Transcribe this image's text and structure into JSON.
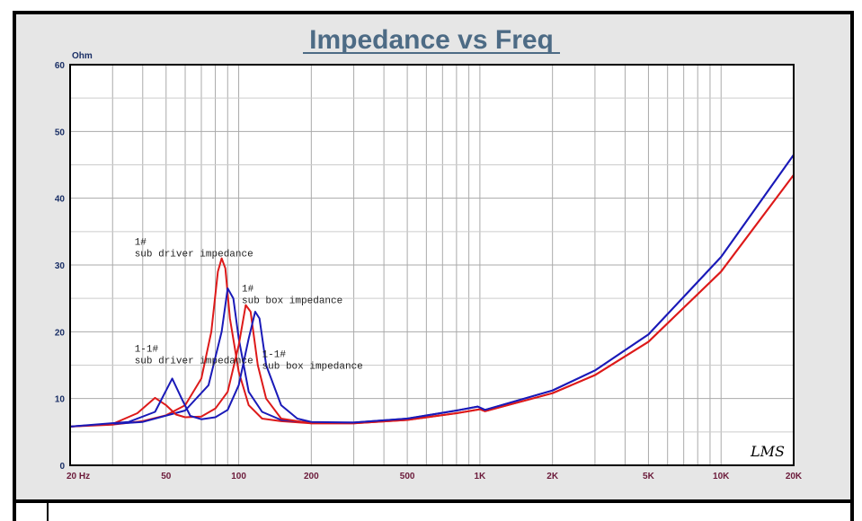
{
  "chart_data": {
    "type": "line",
    "title": "Impedance vs Freq",
    "ylabel": "Ohm",
    "xlabel": "",
    "xscale": "log",
    "xlim": [
      20,
      20000
    ],
    "ylim": [
      0,
      60
    ],
    "grid": true,
    "yticks": [
      0,
      10,
      20,
      30,
      40,
      50,
      60
    ],
    "xticks": [
      {
        "value": 20,
        "label": "20  Hz"
      },
      {
        "value": 50,
        "label": "50"
      },
      {
        "value": 100,
        "label": "100"
      },
      {
        "value": 200,
        "label": "200"
      },
      {
        "value": 500,
        "label": "500"
      },
      {
        "value": 1000,
        "label": "1K"
      },
      {
        "value": 2000,
        "label": "2K"
      },
      {
        "value": 5000,
        "label": "5K"
      },
      {
        "value": 10000,
        "label": "10K"
      },
      {
        "value": 20000,
        "label": "20K"
      }
    ],
    "series": [
      {
        "name": "1# sub driver impedance",
        "color": "#dd1a1a",
        "points": [
          [
            20,
            5.8
          ],
          [
            30,
            6.1
          ],
          [
            40,
            6.6
          ],
          [
            50,
            7.5
          ],
          [
            60,
            9
          ],
          [
            70,
            13
          ],
          [
            77,
            20
          ],
          [
            82,
            29
          ],
          [
            85,
            31
          ],
          [
            88,
            29.5
          ],
          [
            92,
            22
          ],
          [
            100,
            14
          ],
          [
            110,
            9
          ],
          [
            125,
            7
          ],
          [
            150,
            6.6
          ],
          [
            200,
            6.3
          ],
          [
            300,
            6.3
          ],
          [
            500,
            6.8
          ],
          [
            800,
            7.8
          ],
          [
            1000,
            8.4
          ],
          [
            1050,
            8.1
          ],
          [
            2000,
            10.8
          ],
          [
            3000,
            13.5
          ],
          [
            5000,
            18.5
          ],
          [
            10000,
            29
          ],
          [
            20000,
            43.5
          ]
        ]
      },
      {
        "name": "1-1# sub driver impedance",
        "color": "#1a1ab8",
        "points": [
          [
            20,
            5.8
          ],
          [
            40,
            6.5
          ],
          [
            60,
            8.2
          ],
          [
            75,
            12
          ],
          [
            85,
            20
          ],
          [
            90,
            26.5
          ],
          [
            95,
            25
          ],
          [
            100,
            19
          ],
          [
            110,
            11
          ],
          [
            125,
            8
          ],
          [
            150,
            6.8
          ],
          [
            200,
            6.4
          ],
          [
            300,
            6.4
          ],
          [
            500,
            7
          ],
          [
            800,
            8.2
          ],
          [
            980,
            8.8
          ],
          [
            1050,
            8.3
          ],
          [
            2000,
            11.2
          ],
          [
            3000,
            14.2
          ],
          [
            5000,
            19.6
          ],
          [
            10000,
            31.2
          ],
          [
            20000,
            46.5
          ]
        ]
      },
      {
        "name": "1# sub box impedance",
        "color": "#dd1a1a",
        "points": [
          [
            20,
            5.8
          ],
          [
            30,
            6.2
          ],
          [
            38,
            7.8
          ],
          [
            45,
            10.1
          ],
          [
            50,
            9
          ],
          [
            55,
            7.6
          ],
          [
            60,
            7.2
          ],
          [
            70,
            7.3
          ],
          [
            80,
            8.5
          ],
          [
            90,
            11
          ],
          [
            100,
            18
          ],
          [
            107,
            24
          ],
          [
            112,
            23
          ],
          [
            120,
            15
          ],
          [
            130,
            10
          ],
          [
            150,
            7
          ],
          [
            200,
            6.3
          ],
          [
            300,
            6.3
          ],
          [
            500,
            6.8
          ],
          [
            800,
            7.8
          ],
          [
            1000,
            8.4
          ],
          [
            1050,
            8.1
          ],
          [
            2000,
            10.8
          ],
          [
            3000,
            13.5
          ],
          [
            5000,
            18.5
          ],
          [
            10000,
            29
          ],
          [
            20000,
            43.5
          ]
        ]
      },
      {
        "name": "1-1# sub box impedance",
        "color": "#1a1ab8",
        "points": [
          [
            20,
            5.8
          ],
          [
            35,
            6.5
          ],
          [
            45,
            8
          ],
          [
            53,
            13
          ],
          [
            58,
            10
          ],
          [
            63,
            7.4
          ],
          [
            70,
            6.9
          ],
          [
            80,
            7.2
          ],
          [
            90,
            8.3
          ],
          [
            100,
            12
          ],
          [
            110,
            19
          ],
          [
            117,
            23
          ],
          [
            122,
            22
          ],
          [
            130,
            15
          ],
          [
            150,
            9
          ],
          [
            175,
            7
          ],
          [
            200,
            6.5
          ],
          [
            300,
            6.4
          ],
          [
            500,
            7
          ],
          [
            800,
            8.2
          ],
          [
            980,
            8.8
          ],
          [
            1050,
            8.3
          ],
          [
            2000,
            11.2
          ],
          [
            3000,
            14.2
          ],
          [
            5000,
            19.6
          ],
          [
            10000,
            31.2
          ],
          [
            20000,
            46.5
          ]
        ]
      }
    ],
    "annotations": [
      {
        "line1": "1#",
        "line2": "sub driver impedance",
        "freq": 37,
        "ohm": 33
      },
      {
        "line1": "1#",
        "line2": "sub box impedance",
        "freq": 103,
        "ohm": 26
      },
      {
        "line1": "1-1#",
        "line2": "sub driver impedance",
        "freq": 37,
        "ohm": 17
      },
      {
        "line1": "1-1#",
        "line2": "sub box impedance",
        "freq": 125,
        "ohm": 16.2
      }
    ],
    "watermark": "LMS"
  }
}
